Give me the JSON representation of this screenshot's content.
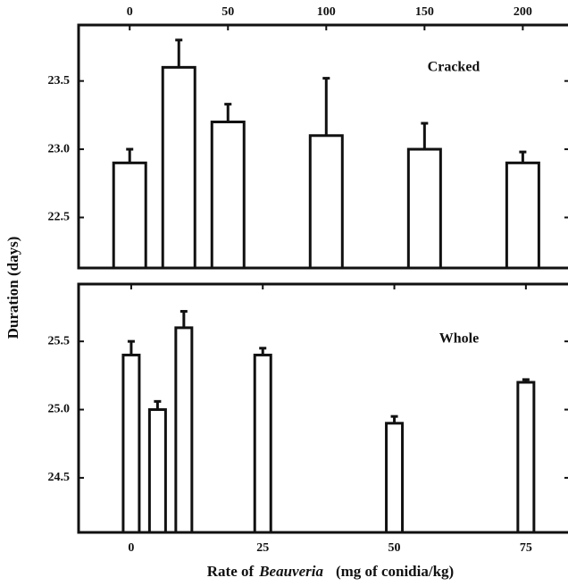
{
  "ylabel": "Duration (days)",
  "xlabel": [
    "Rate of",
    "Beauveria",
    "(mg of conidia/kg)"
  ],
  "chart_data": [
    {
      "type": "bar",
      "annotation": "Cracked",
      "x": [
        0,
        25,
        50,
        100,
        150,
        200
      ],
      "values": [
        22.9,
        23.6,
        23.2,
        23.1,
        23.0,
        22.9
      ],
      "errors": [
        0.1,
        0.2,
        0.13,
        0.42,
        0.19,
        0.08
      ],
      "xlim": [
        -26,
        223
      ],
      "xticks": [
        0,
        50,
        100,
        150,
        200
      ],
      "ylim": [
        22.13,
        23.91
      ],
      "yticks": [
        22.5,
        {
          "value": 23,
          "label": "23.0"
        },
        23.5
      ],
      "color": "#ffffff"
    },
    {
      "type": "bar",
      "annotation": "Whole",
      "x": [
        0,
        5,
        10,
        25,
        50,
        75
      ],
      "values": [
        25.4,
        25.0,
        25.6,
        25.4,
        24.9,
        25.2
      ],
      "errors": [
        0.1,
        0.06,
        0.12,
        0.05,
        0.05,
        0.02
      ],
      "xlim": [
        -10,
        83
      ],
      "xticks": [
        0,
        25,
        50,
        75
      ],
      "ylim": [
        24.1,
        25.92
      ],
      "yticks": [
        24.5,
        {
          "value": 25,
          "label": "25.0"
        },
        25.5
      ],
      "color": "#ffffff"
    }
  ]
}
